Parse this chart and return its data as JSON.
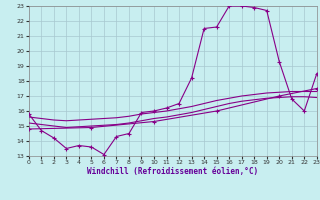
{
  "title": "Windchill (Refroidissement éolien,°C)",
  "bg_color": "#c8eef0",
  "line_color": "#880088",
  "grid_color": "#a8c8d0",
  "xlim": [
    0,
    23
  ],
  "ylim": [
    13,
    23
  ],
  "xticks": [
    0,
    1,
    2,
    3,
    4,
    5,
    6,
    7,
    8,
    9,
    10,
    11,
    12,
    13,
    14,
    15,
    16,
    17,
    18,
    19,
    20,
    21,
    22,
    23
  ],
  "yticks": [
    13,
    14,
    15,
    16,
    17,
    18,
    19,
    20,
    21,
    22,
    23
  ],
  "main_x": [
    0,
    1,
    2,
    3,
    4,
    5,
    6,
    7,
    8,
    9,
    10,
    11,
    12,
    13,
    14,
    15,
    16,
    17,
    18,
    19,
    20,
    21,
    22,
    23
  ],
  "main_y": [
    15.8,
    14.7,
    14.2,
    13.5,
    13.7,
    13.6,
    13.1,
    14.3,
    14.5,
    15.9,
    16.0,
    16.2,
    16.5,
    18.2,
    21.5,
    21.6,
    23.0,
    23.0,
    22.9,
    22.7,
    19.3,
    16.8,
    16.0,
    18.5
  ],
  "line1_x": [
    0,
    1,
    2,
    3,
    4,
    5,
    6,
    7,
    8,
    9,
    10,
    11,
    12,
    13,
    14,
    15,
    16,
    17,
    18,
    19,
    20,
    21,
    22,
    23
  ],
  "line1_y": [
    15.6,
    15.5,
    15.4,
    15.35,
    15.4,
    15.45,
    15.5,
    15.55,
    15.65,
    15.8,
    15.9,
    16.0,
    16.15,
    16.3,
    16.5,
    16.7,
    16.85,
    17.0,
    17.1,
    17.2,
    17.25,
    17.3,
    17.3,
    17.3
  ],
  "line2_x": [
    0,
    1,
    2,
    3,
    4,
    5,
    6,
    7,
    8,
    9,
    10,
    11,
    12,
    13,
    14,
    15,
    16,
    17,
    18,
    19,
    20,
    21,
    22,
    23
  ],
  "line2_y": [
    15.2,
    15.1,
    15.0,
    14.9,
    14.95,
    15.0,
    15.05,
    15.1,
    15.2,
    15.35,
    15.5,
    15.6,
    15.75,
    15.9,
    16.1,
    16.3,
    16.5,
    16.65,
    16.75,
    16.85,
    16.9,
    16.95,
    16.95,
    16.9
  ],
  "line3_x": [
    0,
    5,
    10,
    15,
    20,
    23
  ],
  "line3_y": [
    14.8,
    14.9,
    15.3,
    16.0,
    17.0,
    17.5
  ]
}
